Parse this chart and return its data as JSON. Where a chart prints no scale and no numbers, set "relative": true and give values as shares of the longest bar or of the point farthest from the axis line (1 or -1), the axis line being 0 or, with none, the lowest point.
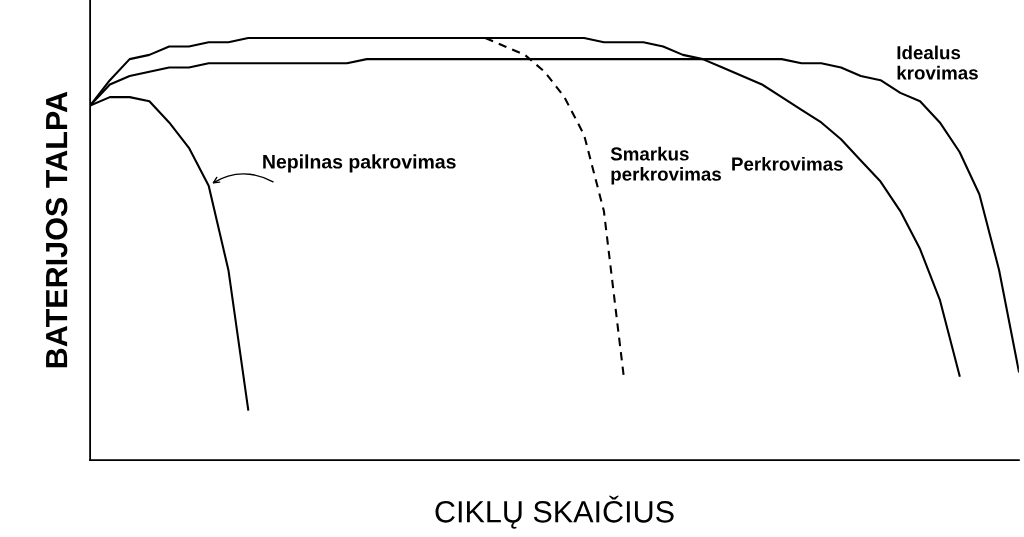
{
  "chart_data": {
    "type": "line",
    "relative": true,
    "xlabel": "CIKLŲ SKAIČIUS",
    "ylabel": "BATERIJOS TALPA",
    "categories": [
      null,
      null,
      null,
      null,
      null,
      null,
      null,
      null,
      null,
      null,
      null,
      null,
      null,
      null,
      null,
      null,
      null,
      null,
      null,
      null,
      null,
      null,
      null,
      null,
      null,
      null,
      null,
      null,
      null,
      null,
      null,
      null,
      null,
      null,
      null,
      null,
      null,
      null,
      null,
      null,
      null,
      null,
      null,
      null,
      null,
      null,
      null,
      null
    ],
    "grid": false,
    "legend": false,
    "marker": "none",
    "series": [
      {
        "name": "Nepilnas pakrovimas",
        "color": "#000000",
        "line_style": "solid",
        "values": [
          0.84,
          0.86,
          0.86,
          0.85,
          0.8,
          0.74,
          0.65,
          0.45,
          0.12,
          null,
          null,
          null,
          null,
          null,
          null,
          null,
          null,
          null,
          null,
          null,
          null,
          null,
          null,
          null,
          null,
          null,
          null,
          null,
          null,
          null,
          null,
          null,
          null,
          null,
          null,
          null,
          null,
          null,
          null,
          null,
          null,
          null,
          null,
          null,
          null,
          null,
          null,
          null
        ]
      },
      {
        "name": "Smarkus perkrovimas",
        "color": "#000000",
        "line_style": "dashed",
        "values": [
          null,
          null,
          null,
          null,
          null,
          null,
          null,
          null,
          null,
          null,
          null,
          null,
          null,
          null,
          null,
          null,
          null,
          null,
          null,
          null,
          1.0,
          0.98,
          0.96,
          0.92,
          0.86,
          0.77,
          0.59,
          0.2,
          null,
          null,
          null,
          null,
          null,
          null,
          null,
          null,
          null,
          null,
          null,
          null,
          null,
          null,
          null,
          null,
          null,
          null,
          null,
          null
        ]
      },
      {
        "name": "Perkrovimas",
        "color": "#000000",
        "line_style": "solid",
        "values": [
          0.84,
          0.9,
          0.95,
          0.96,
          0.98,
          0.98,
          0.99,
          0.99,
          1.0,
          1.0,
          1.0,
          1.0,
          1.0,
          1.0,
          1.0,
          1.0,
          1.0,
          1.0,
          1.0,
          1.0,
          1.0,
          1.0,
          1.0,
          1.0,
          1.0,
          1.0,
          0.99,
          0.99,
          0.99,
          0.98,
          0.96,
          0.95,
          0.93,
          0.91,
          0.89,
          0.86,
          0.83,
          0.8,
          0.76,
          0.71,
          0.66,
          0.59,
          0.5,
          0.38,
          0.2,
          null,
          null,
          null
        ]
      },
      {
        "name": "Idealus krovimas",
        "color": "#000000",
        "line_style": "solid",
        "values": [
          0.84,
          0.89,
          0.91,
          0.92,
          0.93,
          0.93,
          0.94,
          0.94,
          0.94,
          0.94,
          0.94,
          0.94,
          0.94,
          0.94,
          0.95,
          0.95,
          0.95,
          0.95,
          0.95,
          0.95,
          0.95,
          0.95,
          0.95,
          0.95,
          0.95,
          0.95,
          0.95,
          0.95,
          0.95,
          0.95,
          0.95,
          0.95,
          0.95,
          0.95,
          0.95,
          0.95,
          0.94,
          0.94,
          0.93,
          0.91,
          0.9,
          0.87,
          0.85,
          0.8,
          0.73,
          0.63,
          0.45,
          0.21
        ]
      }
    ]
  }
}
